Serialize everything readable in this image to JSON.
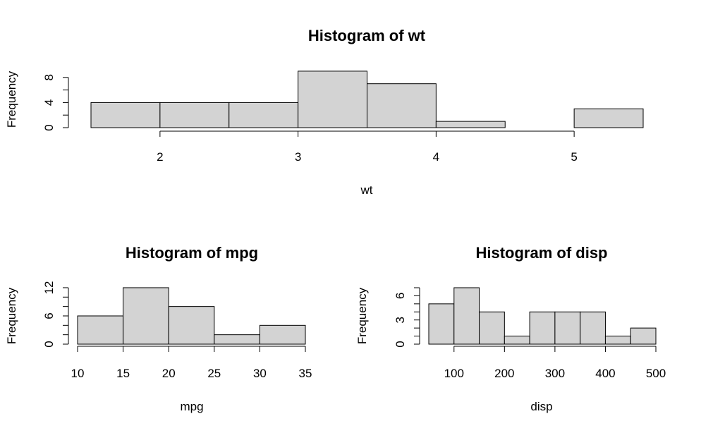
{
  "chart_data": [
    {
      "type": "bar",
      "title": "Histogram of wt",
      "xlabel": "wt",
      "ylabel": "Frequency",
      "breaks": [
        1.5,
        2.0,
        2.5,
        3.0,
        3.5,
        4.0,
        4.5,
        5.0,
        5.5
      ],
      "counts": [
        4,
        4,
        4,
        9,
        7,
        1,
        0,
        3
      ],
      "xticks": [
        2,
        3,
        4,
        5
      ],
      "yticks": [
        0,
        4,
        8
      ],
      "ytick_minor": [
        0,
        2,
        4,
        6,
        8
      ],
      "xlim": [
        1.5,
        5.5
      ],
      "ylim": [
        0,
        9
      ]
    },
    {
      "type": "bar",
      "title": "Histogram of mpg",
      "xlabel": "mpg",
      "ylabel": "Frequency",
      "breaks": [
        10,
        15,
        20,
        25,
        30,
        35
      ],
      "counts": [
        6,
        12,
        8,
        2,
        4
      ],
      "xticks": [
        10,
        15,
        20,
        25,
        30,
        35
      ],
      "yticks": [
        0,
        6,
        12
      ],
      "ytick_minor": [
        0,
        2,
        4,
        6,
        8,
        10,
        12
      ],
      "xlim": [
        10,
        35
      ],
      "ylim": [
        0,
        12
      ]
    },
    {
      "type": "bar",
      "title": "Histogram of disp",
      "xlabel": "disp",
      "ylabel": "Frequency",
      "breaks": [
        50,
        100,
        150,
        200,
        250,
        300,
        350,
        400,
        450,
        500
      ],
      "counts": [
        5,
        7,
        4,
        1,
        4,
        4,
        4,
        1,
        2
      ],
      "xticks": [
        100,
        200,
        300,
        400,
        500
      ],
      "yticks": [
        0,
        3,
        6
      ],
      "ytick_minor": [
        0,
        1,
        2,
        3,
        4,
        5,
        6,
        7
      ],
      "xlim": [
        50,
        500
      ],
      "ylim": [
        0,
        7
      ]
    }
  ]
}
